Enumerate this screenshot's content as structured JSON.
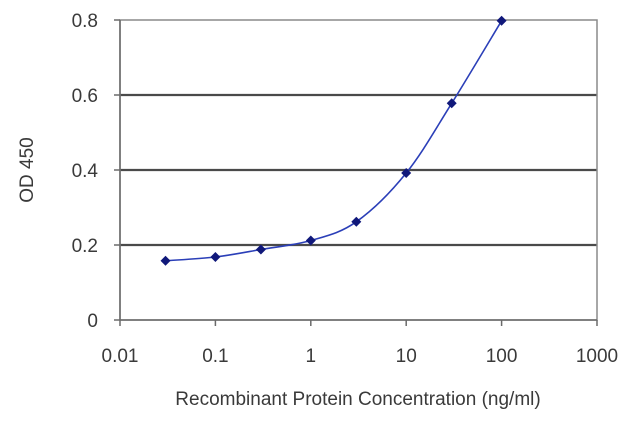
{
  "chart_data": {
    "type": "line",
    "title": "",
    "xlabel": "Recombinant Protein Concentration (ng/ml)",
    "ylabel": "OD 450",
    "x_scale": "log",
    "xlim": [
      0.01,
      1000
    ],
    "ylim": [
      0,
      0.8
    ],
    "x_ticks": [
      "0.01",
      "0.1",
      "1",
      "10",
      "100",
      "1000"
    ],
    "y_ticks": [
      "0",
      "0.2",
      "0.4",
      "0.6",
      "0.8"
    ],
    "grid": "horizontal",
    "series": [
      {
        "x": [
          0.03,
          0.1,
          0.3,
          1,
          3,
          10,
          30,
          100
        ],
        "y": [
          0.158,
          0.168,
          0.188,
          0.212,
          0.262,
          0.392,
          0.578,
          0.798
        ]
      }
    ],
    "colors": {
      "line": "#2b3fb8",
      "marker": "#10187a",
      "grid": "#4a4a4a"
    }
  }
}
